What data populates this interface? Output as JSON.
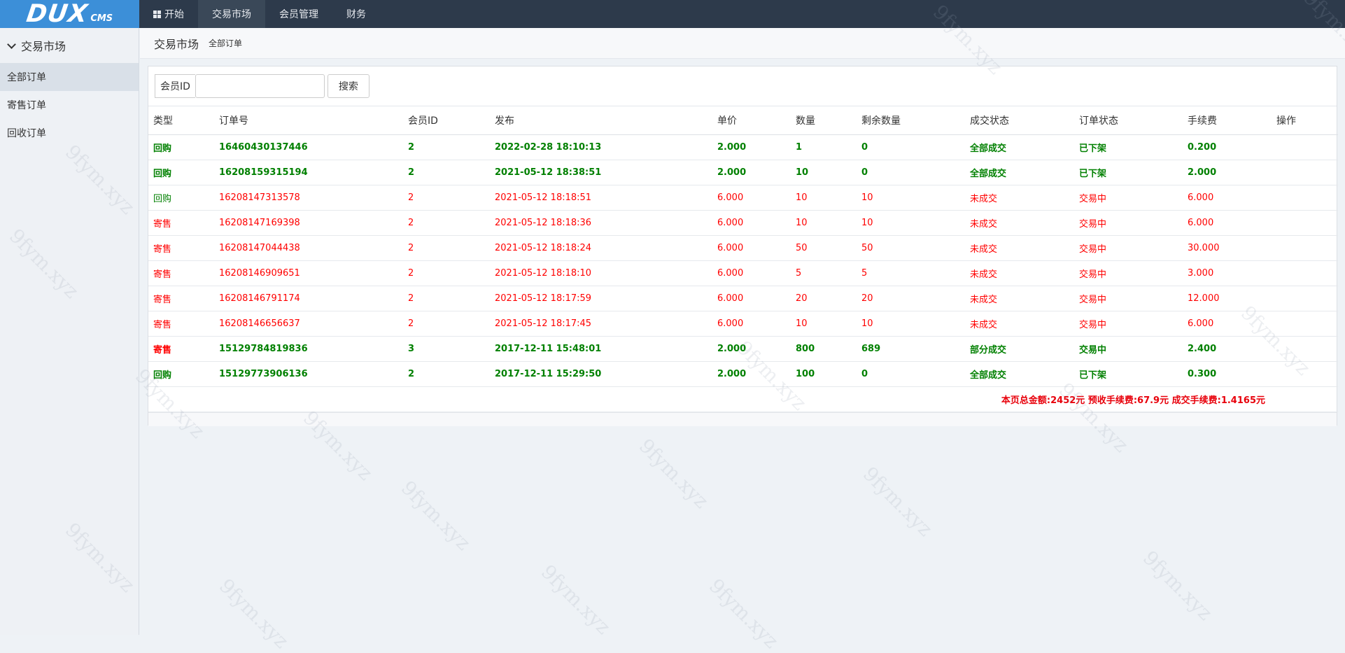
{
  "brand": {
    "main": "DUX",
    "sub": "CMS"
  },
  "topnav": [
    {
      "label": "开始",
      "icon": "windows-icon",
      "active": false
    },
    {
      "label": "交易市场",
      "active": true
    },
    {
      "label": "会员管理",
      "active": false
    },
    {
      "label": "财务",
      "active": false
    }
  ],
  "sidebar": {
    "title": "交易市场",
    "items": [
      {
        "label": "全部订单",
        "active": true
      },
      {
        "label": "寄售订单",
        "active": false
      },
      {
        "label": "回收订单",
        "active": false
      }
    ]
  },
  "breadcrumb": {
    "title": "交易市场",
    "sub": "全部订单"
  },
  "search": {
    "label": "会员ID",
    "value": "",
    "button": "搜索"
  },
  "table": {
    "headers": [
      "类型",
      "订单号",
      "会员ID",
      "发布",
      "单价",
      "数量",
      "剩余数量",
      "成交状态",
      "订单状态",
      "手续费",
      "操作"
    ],
    "rows": [
      {
        "color": "#008000",
        "bold": true,
        "cells": [
          "回购",
          "16460430137446",
          "2",
          "2022-02-28 18:10:13",
          "2.000",
          "1",
          "0",
          "全部成交",
          "已下架",
          "0.200",
          ""
        ]
      },
      {
        "color": "#008000",
        "bold": true,
        "cells": [
          "回购",
          "16208159315194",
          "2",
          "2021-05-12 18:38:51",
          "2.000",
          "10",
          "0",
          "全部成交",
          "已下架",
          "2.000",
          ""
        ]
      },
      {
        "color": "#008000",
        "bold": false,
        "color_rest": "#ff0000",
        "cells": [
          "回购",
          "16208147313578",
          "2",
          "2021-05-12 18:18:51",
          "6.000",
          "10",
          "10",
          "未成交",
          "交易中",
          "6.000",
          ""
        ]
      },
      {
        "color": "#ff0000",
        "bold": false,
        "cells": [
          "寄售",
          "16208147169398",
          "2",
          "2021-05-12 18:18:36",
          "6.000",
          "10",
          "10",
          "未成交",
          "交易中",
          "6.000",
          ""
        ]
      },
      {
        "color": "#ff0000",
        "bold": false,
        "cells": [
          "寄售",
          "16208147044438",
          "2",
          "2021-05-12 18:18:24",
          "6.000",
          "50",
          "50",
          "未成交",
          "交易中",
          "30.000",
          ""
        ]
      },
      {
        "color": "#ff0000",
        "bold": false,
        "cells": [
          "寄售",
          "16208146909651",
          "2",
          "2021-05-12 18:18:10",
          "6.000",
          "5",
          "5",
          "未成交",
          "交易中",
          "3.000",
          ""
        ]
      },
      {
        "color": "#ff0000",
        "bold": false,
        "cells": [
          "寄售",
          "16208146791174",
          "2",
          "2021-05-12 18:17:59",
          "6.000",
          "20",
          "20",
          "未成交",
          "交易中",
          "12.000",
          ""
        ]
      },
      {
        "color": "#ff0000",
        "bold": false,
        "cells": [
          "寄售",
          "16208146656637",
          "2",
          "2021-05-12 18:17:45",
          "6.000",
          "10",
          "10",
          "未成交",
          "交易中",
          "6.000",
          ""
        ]
      },
      {
        "color": "#008000",
        "bold": true,
        "color_first": "#ff0000",
        "cells": [
          "寄售",
          "15129784819836",
          "3",
          "2017-12-11 15:48:01",
          "2.000",
          "800",
          "689",
          "部分成交",
          "交易中",
          "2.400",
          ""
        ]
      },
      {
        "color": "#008000",
        "bold": true,
        "cells": [
          "回购",
          "15129773906136",
          "2",
          "2017-12-11 15:29:50",
          "2.000",
          "100",
          "0",
          "全部成交",
          "已下架",
          "0.300",
          ""
        ]
      }
    ],
    "summary": "本页总金额:2452元 预收手续费:67.9元 成交手续费:1.4165元"
  },
  "watermark": "9fym.xyz"
}
